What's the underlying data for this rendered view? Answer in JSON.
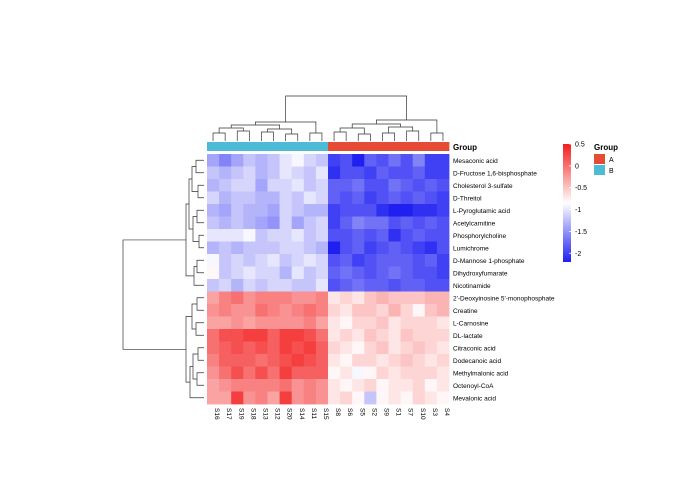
{
  "chart_data": {
    "type": "heatmap",
    "samples": [
      "S16",
      "S17",
      "S19",
      "S18",
      "S13",
      "S12",
      "S20",
      "S14",
      "S11",
      "S15",
      "S8",
      "S6",
      "S5",
      "S2",
      "S9",
      "S1",
      "S7",
      "S10",
      "S3",
      "S4"
    ],
    "sample_groups": [
      "B",
      "B",
      "B",
      "B",
      "B",
      "B",
      "B",
      "B",
      "B",
      "B",
      "A",
      "A",
      "A",
      "A",
      "A",
      "A",
      "A",
      "A",
      "A",
      "A"
    ],
    "metabolites": [
      "Mesaconic acid",
      "D-Fructose 1,6-bisphosphate",
      "Cholesterol 3-sulfate",
      "D-Threitol",
      "L-Pyroglutamic acid",
      "Acetylcarnitine",
      "Phosphorylcholine",
      "Lumichrome",
      "D-Mannose 1-phosphate",
      "Dihydroxyfumarate",
      "Nicotinamide",
      "2'-Deoxyinosine 5'-monophosphate",
      "Creatine",
      "L-Carnosine",
      "DL-lactate",
      "Citraconic acid",
      "Dodecanoic acid",
      "Methylmalonic acid",
      "Octenoyl-CoA",
      "Mevalonic acid"
    ],
    "values": [
      [
        -1.4,
        -1.6,
        -1.4,
        -1.2,
        -1.3,
        -1.2,
        -1.0,
        -0.9,
        -1.1,
        -1.2,
        -2.0,
        -1.9,
        -2.2,
        -1.8,
        -1.9,
        -1.7,
        -1.9,
        -1.6,
        -2.0,
        -2.0
      ],
      [
        -1.2,
        -1.3,
        -1.2,
        -1.1,
        -1.3,
        -1.2,
        -1.0,
        -1.1,
        -1.2,
        -1.0,
        -2.1,
        -1.9,
        -1.9,
        -2.0,
        -1.8,
        -1.9,
        -1.9,
        -1.8,
        -2.0,
        -2.0
      ],
      [
        -1.3,
        -1.2,
        -1.1,
        -1.1,
        -1.4,
        -1.1,
        -1.1,
        -1.0,
        -1.2,
        -1.1,
        -1.8,
        -1.8,
        -1.7,
        -1.9,
        -1.9,
        -1.7,
        -1.8,
        -1.9,
        -1.8,
        -1.9
      ],
      [
        -1.1,
        -1.3,
        -1.2,
        -1.2,
        -1.3,
        -1.3,
        -1.1,
        -1.2,
        -1.0,
        -1.1,
        -1.8,
        -1.9,
        -1.8,
        -2.0,
        -1.9,
        -1.8,
        -1.9,
        -1.8,
        -1.9,
        -2.0
      ],
      [
        -1.3,
        -1.4,
        -1.2,
        -1.3,
        -1.3,
        -1.4,
        -1.1,
        -1.2,
        -1.3,
        -1.3,
        -2.0,
        -1.9,
        -1.9,
        -1.9,
        -2.1,
        -2.2,
        -2.2,
        -2.1,
        -2.1,
        -2.0
      ],
      [
        -1.2,
        -1.3,
        -1.2,
        -1.3,
        -1.4,
        -1.5,
        -1.1,
        -1.4,
        -1.2,
        -1.1,
        -2.0,
        -1.8,
        -1.6,
        -1.7,
        -1.7,
        -1.9,
        -1.8,
        -1.9,
        -1.8,
        -1.9
      ],
      [
        -1.0,
        -1.0,
        -1.0,
        -0.9,
        -1.2,
        -1.1,
        -1.1,
        -1.0,
        -1.2,
        -1.1,
        -1.9,
        -1.9,
        -1.8,
        -1.9,
        -1.8,
        -2.1,
        -1.9,
        -1.8,
        -1.9,
        -1.9
      ],
      [
        -1.3,
        -1.2,
        -1.3,
        -1.2,
        -1.2,
        -1.2,
        -1.1,
        -1.1,
        -1.2,
        -1.3,
        -2.2,
        -1.9,
        -1.8,
        -2.0,
        -1.9,
        -1.8,
        -1.9,
        -2.0,
        -2.1,
        -1.9
      ],
      [
        -0.9,
        -1.2,
        -1.1,
        -1.2,
        -1.1,
        -1.0,
        -1.2,
        -1.1,
        -1.0,
        -1.1,
        -1.9,
        -1.8,
        -2.0,
        -1.9,
        -1.8,
        -1.8,
        -1.8,
        -1.9,
        -1.8,
        -2.0
      ],
      [
        -0.8,
        -1.2,
        -1.1,
        -1.0,
        -1.1,
        -1.1,
        -1.3,
        -1.0,
        -1.2,
        -1.1,
        -1.8,
        -1.7,
        -1.8,
        -1.9,
        -1.8,
        -1.7,
        -1.8,
        -1.9,
        -1.9,
        -2.0
      ],
      [
        -1.2,
        -1.1,
        -1.3,
        -1.1,
        -1.2,
        -1.1,
        -1.1,
        -1.2,
        -1.2,
        -1.0,
        -1.9,
        -1.8,
        -1.7,
        -1.8,
        -1.8,
        -1.9,
        -1.8,
        -1.8,
        -1.9,
        -1.9
      ],
      [
        -0.3,
        -0.1,
        0.0,
        -0.2,
        -0.1,
        -0.1,
        -0.1,
        -0.2,
        -0.2,
        -0.1,
        -0.7,
        -0.6,
        -0.7,
        -0.5,
        -0.4,
        -0.5,
        -0.5,
        -0.5,
        -0.4,
        -0.4
      ],
      [
        -0.2,
        -0.1,
        -0.2,
        -0.2,
        0.0,
        -0.1,
        -0.2,
        -0.1,
        0.0,
        -0.1,
        -0.6,
        -0.7,
        -0.5,
        -0.5,
        -0.6,
        -0.4,
        -0.6,
        -0.8,
        -0.5,
        -0.4
      ],
      [
        -0.3,
        -0.3,
        -0.2,
        -0.3,
        -0.2,
        -0.2,
        -0.2,
        -0.2,
        -0.1,
        -0.3,
        -0.7,
        -0.8,
        -0.6,
        -0.6,
        -0.5,
        -0.7,
        -0.6,
        -0.6,
        -0.6,
        -0.7
      ],
      [
        0.0,
        0.2,
        0.2,
        0.3,
        0.3,
        0.1,
        0.3,
        0.3,
        0.2,
        0.0,
        -0.7,
        -0.6,
        -0.7,
        -0.5,
        -0.6,
        -0.7,
        -0.5,
        -0.6,
        -0.6,
        -0.6
      ],
      [
        0.0,
        0.1,
        0.2,
        0.1,
        0.2,
        0.1,
        0.3,
        0.2,
        0.3,
        0.1,
        -0.6,
        -0.7,
        -0.8,
        -0.6,
        -0.5,
        -0.7,
        -0.6,
        -0.5,
        -0.6,
        -0.7
      ],
      [
        -0.1,
        0.1,
        0.1,
        0.1,
        0.0,
        0.1,
        0.2,
        0.3,
        0.2,
        0.1,
        -0.7,
        -0.8,
        -0.6,
        -0.6,
        -0.7,
        -0.6,
        -0.5,
        -0.6,
        -0.7,
        -0.6
      ],
      [
        -0.2,
        0.0,
        0.2,
        0.0,
        0.2,
        0.0,
        0.3,
        0.1,
        0.1,
        0.1,
        -0.8,
        -0.7,
        -0.9,
        -0.8,
        -0.6,
        -0.7,
        -0.6,
        -0.6,
        -0.6,
        -0.7
      ],
      [
        -0.3,
        -0.2,
        -0.1,
        -0.1,
        -0.1,
        -0.1,
        0.0,
        -0.2,
        -0.1,
        -0.2,
        -0.7,
        -0.8,
        -0.7,
        -0.6,
        -0.8,
        -0.7,
        -0.7,
        -0.6,
        -0.8,
        -0.7
      ],
      [
        -0.3,
        -0.3,
        0.3,
        -0.2,
        -0.1,
        -0.3,
        0.3,
        -0.2,
        -0.1,
        -0.2,
        -0.7,
        -0.6,
        -0.8,
        -1.2,
        -0.8,
        -0.7,
        -0.8,
        -0.6,
        -0.7,
        -0.8
      ]
    ],
    "color_scale": {
      "min": -2.2,
      "max": 0.5,
      "low": "#1f1ff2",
      "mid": "#ffffff",
      "high": "#f31d1d",
      "mid_value": -0.85
    },
    "color_bar": {
      "ticks": [
        "0.5",
        "0",
        "-0.5",
        "-1",
        "-1.5",
        "-2"
      ],
      "tick_values": [
        0.5,
        0,
        -0.5,
        -1,
        -1.5,
        -2
      ]
    },
    "group_annotation": {
      "label": "Group",
      "legend_title": "Group",
      "groups": [
        {
          "name": "A",
          "color": "#e64b35"
        },
        {
          "name": "B",
          "color": "#4dbbd5"
        }
      ]
    },
    "row_dendrogram": true,
    "col_dendrogram": true
  }
}
